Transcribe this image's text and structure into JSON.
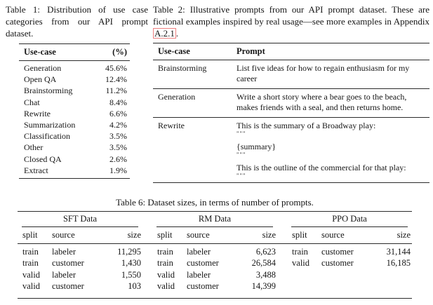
{
  "colors": {
    "text": "#161616",
    "rule": "#2b2b2b",
    "appendix_link_box_border": "#ef8181",
    "background": "#ffffff"
  },
  "table1": {
    "caption": "Table 1: Distribution of use case categories from our API prompt dataset.",
    "headers": [
      "Use-case",
      "(%)"
    ],
    "rows": [
      [
        "Generation",
        "45.6%"
      ],
      [
        "Open QA",
        "12.4%"
      ],
      [
        "Brainstorming",
        "11.2%"
      ],
      [
        "Chat",
        "8.4%"
      ],
      [
        "Rewrite",
        "6.6%"
      ],
      [
        "Summarization",
        "4.2%"
      ],
      [
        "Classification",
        "3.5%"
      ],
      [
        "Other",
        "3.5%"
      ],
      [
        "Closed QA",
        "2.6%"
      ],
      [
        "Extract",
        "1.9%"
      ]
    ]
  },
  "table2": {
    "caption_before": "Table 2: Illustrative prompts from our API prompt dataset. These are fictional examples inspired by real usage—see more examples in Appendix ",
    "caption_link": "A.2.1",
    "caption_after": ".",
    "headers": [
      "Use-case",
      "Prompt"
    ],
    "rows": [
      {
        "use_case": "Brainstorming",
        "prompt": {
          "text": "List five ideas for how to regain enthusiasm for my career"
        }
      },
      {
        "use_case": "Generation",
        "prompt": {
          "text": "Write a short story where a bear goes to the beach, makes friends with a seal, and then returns home."
        }
      },
      {
        "use_case": "Rewrite",
        "prompt": {
          "line1": "This is the summary of a Broadway play:",
          "q1": "\"\"\"",
          "line2": "{summary}",
          "q2": "\"\"\"",
          "line3": "This is the outline of the commercial for that play:",
          "q3": "\"\"\""
        }
      }
    ]
  },
  "table6": {
    "caption": "Table 6: Dataset sizes, in terms of number of prompts.",
    "col_headers": [
      "split",
      "source",
      "size"
    ],
    "groups": [
      {
        "name": "SFT Data",
        "rows": [
          [
            "train",
            "labeler",
            "11,295"
          ],
          [
            "train",
            "customer",
            "1,430"
          ],
          [
            "valid",
            "labeler",
            "1,550"
          ],
          [
            "valid",
            "customer",
            "103"
          ]
        ]
      },
      {
        "name": "RM Data",
        "rows": [
          [
            "train",
            "labeler",
            "6,623"
          ],
          [
            "train",
            "customer",
            "26,584"
          ],
          [
            "valid",
            "labeler",
            "3,488"
          ],
          [
            "valid",
            "customer",
            "14,399"
          ]
        ]
      },
      {
        "name": "PPO Data",
        "rows": [
          [
            "train",
            "customer",
            "31,144"
          ],
          [
            "valid",
            "customer",
            "16,185"
          ]
        ]
      }
    ]
  }
}
